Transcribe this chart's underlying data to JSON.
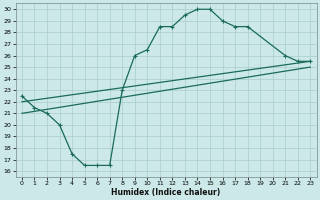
{
  "xlabel": "Humidex (Indice chaleur)",
  "bg_color": "#cce8e8",
  "grid_color": "#aacccc",
  "line_color": "#1a6b5a",
  "xlim": [
    -0.5,
    23.5
  ],
  "ylim": [
    15.5,
    30.5
  ],
  "xticks": [
    0,
    1,
    2,
    3,
    4,
    5,
    6,
    7,
    8,
    9,
    10,
    11,
    12,
    13,
    14,
    15,
    16,
    17,
    18,
    19,
    20,
    21,
    22,
    23
  ],
  "yticks": [
    16,
    17,
    18,
    19,
    20,
    21,
    22,
    23,
    24,
    25,
    26,
    27,
    28,
    29,
    30
  ],
  "curve_x": [
    0,
    1,
    2,
    3,
    4,
    5,
    6,
    7,
    8,
    9,
    10,
    11,
    12,
    13,
    14,
    15,
    16,
    17,
    18,
    21,
    22,
    23
  ],
  "curve_y": [
    22.5,
    21.5,
    21.0,
    20.0,
    17.5,
    16.5,
    16.5,
    16.5,
    23.0,
    26.0,
    26.5,
    28.5,
    28.5,
    29.5,
    30.0,
    30.0,
    29.0,
    28.5,
    28.5,
    26.0,
    25.5,
    25.5
  ],
  "line2_x0": 0,
  "line2_x1": 23,
  "line2_y0": 22.0,
  "line2_y1": 25.5,
  "line3_x0": 0,
  "line3_x1": 23,
  "line3_y0": 21.0,
  "line3_y1": 25.0
}
